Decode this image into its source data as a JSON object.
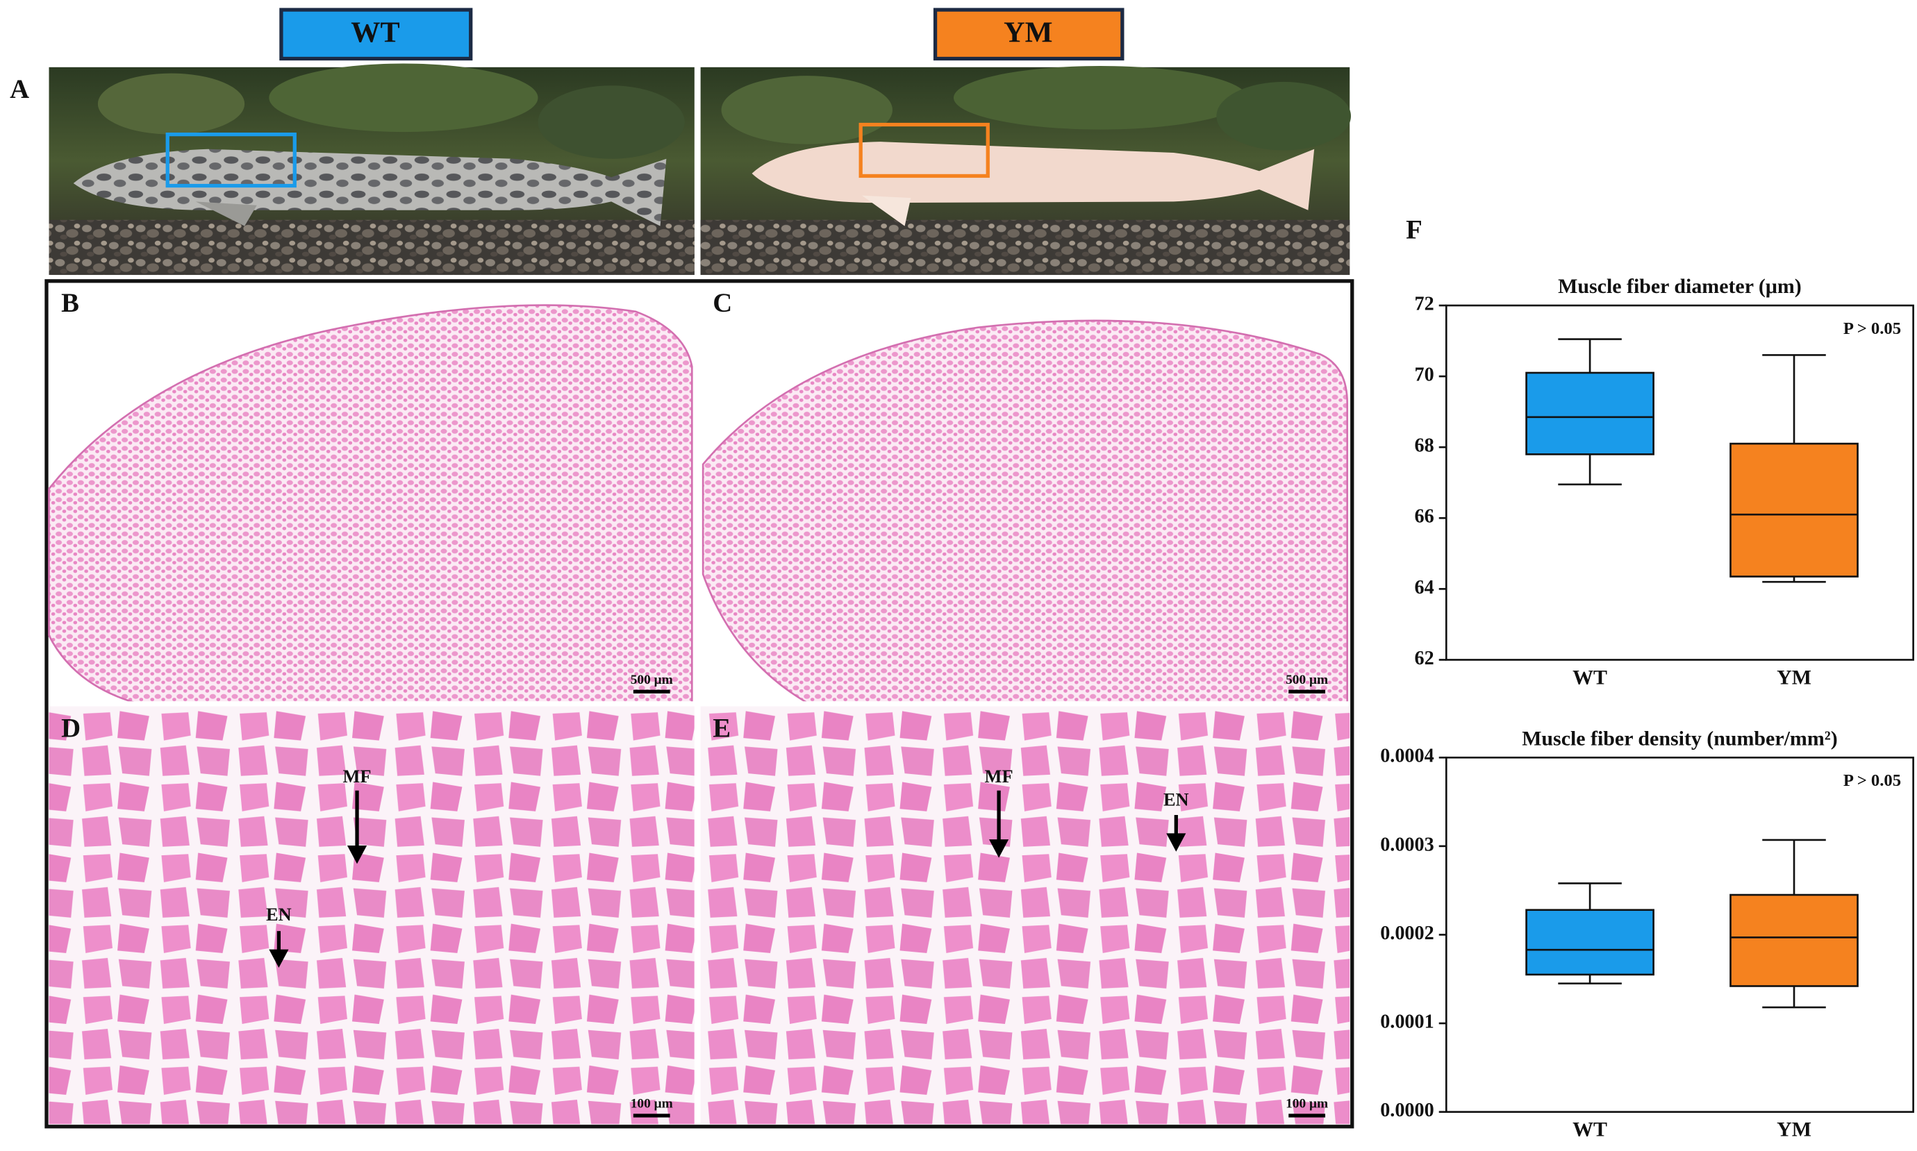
{
  "group_labels": [
    "WT",
    "YM"
  ],
  "panel_labels": [
    "A",
    "B",
    "C",
    "D",
    "E",
    "F"
  ],
  "scale_bars": [
    "500 μm",
    "500 μm",
    "100 μm",
    "100 μm"
  ],
  "arrows": {
    "D": [
      "MF",
      "EN"
    ],
    "E": [
      "MF",
      "EN"
    ]
  },
  "chart_data": [
    {
      "type": "box",
      "title": "Muscle fiber diameter (μm)",
      "annotation": "P > 0.05",
      "categories": [
        "WT",
        "YM"
      ],
      "colors": [
        "#1a9bea",
        "#f5821f"
      ],
      "min": [
        66.95,
        64.2
      ],
      "q1": [
        67.8,
        64.35
      ],
      "median": [
        68.85,
        66.1
      ],
      "q3": [
        70.1,
        68.1
      ],
      "max": [
        71.05,
        70.6
      ],
      "ylim": [
        62,
        72
      ],
      "yticks": [
        62,
        64,
        66,
        68,
        70,
        72
      ]
    },
    {
      "type": "box",
      "title": "Muscle fiber density (number/mm²)",
      "annotation": "P > 0.05",
      "categories": [
        "WT",
        "YM"
      ],
      "colors": [
        "#1a9bea",
        "#f5821f"
      ],
      "min": [
        0.000145,
        0.000118
      ],
      "q1": [
        0.000155,
        0.000142
      ],
      "median": [
        0.000183,
        0.000197
      ],
      "q3": [
        0.000228,
        0.000245
      ],
      "max": [
        0.000258,
        0.000307
      ],
      "ylim": [
        0,
        0.0004
      ],
      "yticks": [
        {
          "value": 0,
          "label": "0.0000"
        },
        {
          "value": 0.0001,
          "label": "0.0001"
        },
        {
          "value": 0.0002,
          "label": "0.0002"
        },
        {
          "value": 0.0003,
          "label": "0.0003"
        },
        {
          "value": 0.0004,
          "label": "0.0004"
        }
      ]
    }
  ]
}
